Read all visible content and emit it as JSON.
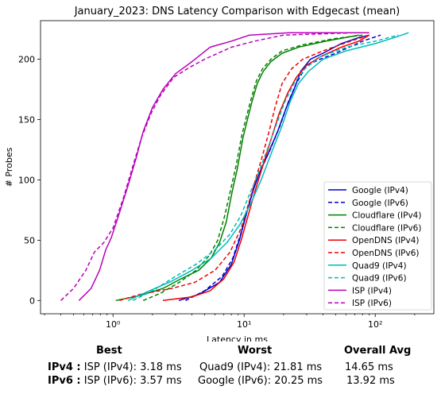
{
  "chart_data": {
    "type": "line",
    "title": "January_2023: DNS Latency Comparison with Edgecast (mean)",
    "xlabel": "Latency in ms",
    "ylabel": "# Probes",
    "xscale": "log",
    "xlim": [
      0.28,
      280
    ],
    "ylim": [
      -11,
      232
    ],
    "xticks": [
      1,
      10,
      100
    ],
    "xtick_labels": [
      "10⁰",
      "10¹",
      "10²"
    ],
    "yticks": [
      0,
      50,
      100,
      150,
      200
    ],
    "grid": false,
    "legend_position": "lower right",
    "series": [
      {
        "name": "Google (IPv4)",
        "color": "#0000cc",
        "dash": "solid",
        "points": [
          [
            3.18,
            0
          ],
          [
            4.5,
            5
          ],
          [
            6.5,
            15
          ],
          [
            8,
            30
          ],
          [
            9.2,
            50
          ],
          [
            10.3,
            70
          ],
          [
            11.6,
            90
          ],
          [
            13,
            105
          ],
          [
            15,
            120
          ],
          [
            18,
            140
          ],
          [
            21,
            160
          ],
          [
            24,
            175
          ],
          [
            27,
            190
          ],
          [
            32,
            200
          ],
          [
            40,
            205
          ],
          [
            55,
            213
          ],
          [
            75,
            218
          ],
          [
            90,
            220
          ]
        ]
      },
      {
        "name": "Google (IPv6)",
        "color": "#0000cc",
        "dash": "dashed",
        "points": [
          [
            3.57,
            0
          ],
          [
            5,
            8
          ],
          [
            6.8,
            20
          ],
          [
            8.2,
            35
          ],
          [
            9.4,
            55
          ],
          [
            10.6,
            75
          ],
          [
            12,
            95
          ],
          [
            13.6,
            110
          ],
          [
            15.8,
            125
          ],
          [
            18.8,
            145
          ],
          [
            21.8,
            165
          ],
          [
            25,
            180
          ],
          [
            30,
            195
          ],
          [
            38,
            200
          ],
          [
            50,
            205
          ],
          [
            80,
            215
          ],
          [
            110,
            220
          ]
        ]
      },
      {
        "name": "Cloudflare (IPv4)",
        "color": "#008000",
        "dash": "solid",
        "points": [
          [
            1.05,
            0
          ],
          [
            1.6,
            4
          ],
          [
            2.4,
            10
          ],
          [
            3.3,
            18
          ],
          [
            4.5,
            25
          ],
          [
            5.6,
            35
          ],
          [
            6.5,
            48
          ],
          [
            7.3,
            65
          ],
          [
            8.1,
            90
          ],
          [
            8.9,
            110
          ],
          [
            9.8,
            135
          ],
          [
            10.6,
            150
          ],
          [
            11.5,
            165
          ],
          [
            12.6,
            180
          ],
          [
            14,
            190
          ],
          [
            16,
            198
          ],
          [
            19.5,
            205
          ],
          [
            26,
            210
          ],
          [
            42,
            215
          ],
          [
            75,
            220
          ]
        ]
      },
      {
        "name": "Cloudflare (IPv6)",
        "color": "#008000",
        "dash": "dashed",
        "points": [
          [
            1.7,
            0
          ],
          [
            2.3,
            6
          ],
          [
            3.2,
            15
          ],
          [
            4.3,
            25
          ],
          [
            5.4,
            37
          ],
          [
            6.3,
            50
          ],
          [
            7.1,
            70
          ],
          [
            7.9,
            92
          ],
          [
            8.7,
            112
          ],
          [
            9.6,
            137
          ],
          [
            10.4,
            152
          ],
          [
            11.3,
            167
          ],
          [
            12.4,
            182
          ],
          [
            13.8,
            192
          ],
          [
            16,
            200
          ],
          [
            19.5,
            207
          ],
          [
            28,
            212
          ],
          [
            48,
            217
          ],
          [
            80,
            220
          ]
        ]
      },
      {
        "name": "OpenDNS (IPv4)",
        "color": "#ee0000",
        "dash": "solid",
        "points": [
          [
            2.4,
            0
          ],
          [
            4,
            3
          ],
          [
            5.5,
            8
          ],
          [
            7,
            18
          ],
          [
            8.4,
            32
          ],
          [
            9.5,
            50
          ],
          [
            10.7,
            70
          ],
          [
            12.2,
            92
          ],
          [
            14.2,
            115
          ],
          [
            16.2,
            135
          ],
          [
            18.5,
            155
          ],
          [
            21.5,
            172
          ],
          [
            25,
            185
          ],
          [
            30,
            195
          ],
          [
            38,
            202
          ],
          [
            55,
            210
          ],
          [
            75,
            215
          ],
          [
            90,
            220
          ]
        ]
      },
      {
        "name": "OpenDNS (IPv6)",
        "color": "#ee0000",
        "dash": "dashed",
        "points": [
          [
            1.12,
            0
          ],
          [
            1.6,
            5
          ],
          [
            2.8,
            10
          ],
          [
            4.2,
            15
          ],
          [
            6,
            25
          ],
          [
            7.8,
            40
          ],
          [
            9.5,
            60
          ],
          [
            10.8,
            80
          ],
          [
            12.2,
            100
          ],
          [
            13.8,
            120
          ],
          [
            15.5,
            140
          ],
          [
            17.2,
            160
          ],
          [
            19.5,
            180
          ],
          [
            23,
            192
          ],
          [
            28,
            200
          ],
          [
            40,
            207
          ],
          [
            65,
            215
          ],
          [
            90,
            220
          ]
        ]
      },
      {
        "name": "Quad9 (IPv4)",
        "color": "#00bbbb",
        "dash": "solid",
        "points": [
          [
            1.3,
            0
          ],
          [
            1.9,
            8
          ],
          [
            2.8,
            16
          ],
          [
            4,
            25
          ],
          [
            5.6,
            35
          ],
          [
            7.4,
            48
          ],
          [
            9.3,
            63
          ],
          [
            11.2,
            80
          ],
          [
            13.5,
            100
          ],
          [
            16.5,
            125
          ],
          [
            19.5,
            145
          ],
          [
            22.5,
            165
          ],
          [
            26,
            180
          ],
          [
            31,
            190
          ],
          [
            40,
            200
          ],
          [
            60,
            207
          ],
          [
            100,
            213
          ],
          [
            140,
            218
          ],
          [
            180,
            222
          ]
        ]
      },
      {
        "name": "Quad9 (IPv6)",
        "color": "#00bbbb",
        "dash": "dashed",
        "points": [
          [
            1.42,
            0
          ],
          [
            2,
            8
          ],
          [
            3,
            20
          ],
          [
            4.3,
            30
          ],
          [
            6,
            42
          ],
          [
            7.8,
            55
          ],
          [
            9.4,
            70
          ],
          [
            11,
            88
          ],
          [
            12.8,
            105
          ],
          [
            15,
            125
          ],
          [
            17.5,
            145
          ],
          [
            20.5,
            165
          ],
          [
            24,
            180
          ],
          [
            29,
            192
          ],
          [
            38,
            202
          ],
          [
            60,
            210
          ],
          [
            100,
            215
          ],
          [
            150,
            220
          ]
        ]
      },
      {
        "name": "ISP (IPv4)",
        "color": "#bb00bb",
        "dash": "solid",
        "points": [
          [
            0.55,
            0
          ],
          [
            0.68,
            10
          ],
          [
            0.79,
            25
          ],
          [
            0.88,
            42
          ],
          [
            0.97,
            52
          ],
          [
            1.1,
            70
          ],
          [
            1.3,
            95
          ],
          [
            1.5,
            118
          ],
          [
            1.7,
            140
          ],
          [
            2,
            160
          ],
          [
            2.4,
            175
          ],
          [
            3,
            188
          ],
          [
            4,
            198
          ],
          [
            5.5,
            210
          ],
          [
            8,
            215
          ],
          [
            11,
            220
          ],
          [
            22,
            222
          ],
          [
            90,
            222
          ]
        ]
      },
      {
        "name": "ISP (IPv6)",
        "color": "#bb00bb",
        "dash": "dashed",
        "points": [
          [
            0.4,
            0
          ],
          [
            0.5,
            10
          ],
          [
            0.62,
            25
          ],
          [
            0.72,
            40
          ],
          [
            0.85,
            48
          ],
          [
            1,
            60
          ],
          [
            1.2,
            85
          ],
          [
            1.45,
            115
          ],
          [
            1.65,
            135
          ],
          [
            1.95,
            155
          ],
          [
            2.3,
            170
          ],
          [
            2.9,
            185
          ],
          [
            3.8,
            193
          ],
          [
            5,
            200
          ],
          [
            8,
            210
          ],
          [
            12,
            215
          ],
          [
            20,
            220
          ],
          [
            70,
            222
          ]
        ]
      }
    ]
  },
  "summary": {
    "headers": {
      "best": "Best",
      "worst": "Worst",
      "avg": "Overall Avg"
    },
    "rows": [
      {
        "label": "IPv4 :",
        "best": "ISP (IPv4): 3.18 ms",
        "worst": "Quad9 (IPv4): 21.81 ms",
        "avg": "14.65 ms"
      },
      {
        "label": "IPv6 :",
        "best": "ISP (IPv6): 3.57 ms",
        "worst": "Google (IPv6): 20.25 ms",
        "avg": "13.92 ms"
      }
    ]
  }
}
